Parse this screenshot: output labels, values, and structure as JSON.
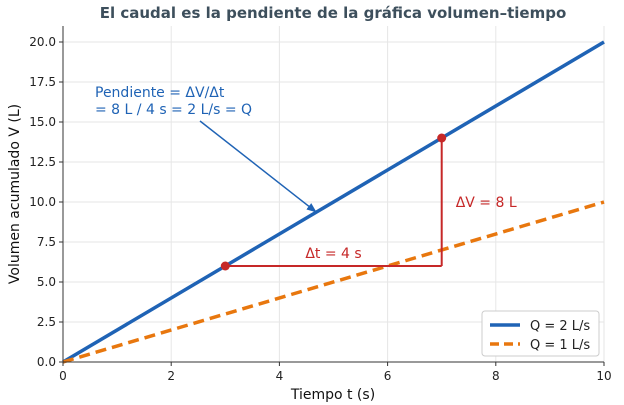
{
  "chart_data": {
    "type": "line",
    "title": "El caudal es la pendiente de la gráfica volumen–tiempo",
    "xlabel": "Tiempo t (s)",
    "ylabel": "Volumen acumulado V (L)",
    "xlim": [
      0,
      10
    ],
    "ylim": [
      0,
      21
    ],
    "xticks": [
      0,
      2,
      4,
      6,
      8,
      10
    ],
    "yticks": [
      0.0,
      2.5,
      5.0,
      7.5,
      10.0,
      12.5,
      15.0,
      17.5,
      20.0
    ],
    "grid": true,
    "legend_position": "bottom-right",
    "series": [
      {
        "name": "Q = 2 L/s",
        "x": [
          0,
          10
        ],
        "y": [
          0,
          20
        ],
        "style": "solid",
        "color": "#1f63b5"
      },
      {
        "name": "Q = 1 L/s",
        "x": [
          0,
          10
        ],
        "y": [
          0,
          10
        ],
        "style": "dashed",
        "color": "#e8770e"
      }
    ],
    "slope_triangle": {
      "point_a": [
        3,
        6
      ],
      "point_b": [
        7,
        14
      ],
      "corner": [
        7,
        6
      ],
      "color": "#c62828",
      "dt_label": "Δt = 4 s",
      "dv_label": "ΔV = 8 L"
    },
    "annotation": {
      "lines": [
        "Pendiente = ΔV/Δt",
        "= 8 L / 4 s = 2 L/s = Q"
      ],
      "arrow_target": [
        4.6,
        9.2
      ],
      "color": "#1f63b5"
    },
    "title_color": "#3d4f5c"
  }
}
